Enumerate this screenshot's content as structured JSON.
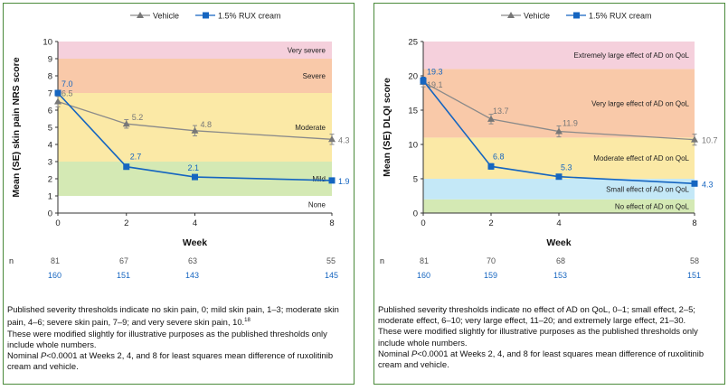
{
  "colors": {
    "vehicle": "#8a8a8a",
    "rux": "#1565c0",
    "band_green": "#d4e9b4",
    "band_yellow": "#fbe9a6",
    "band_orange": "#f9c9a9",
    "band_pink": "#f5d0dc",
    "band_blue": "#c4e8f7",
    "border": "#4a8a3a"
  },
  "chart_data": [
    {
      "type": "line",
      "legend": [
        "Vehicle",
        "1.5% RUX cream"
      ],
      "ylabel": "Mean (SE) skin pain NRS score",
      "xlabel": "Week",
      "ylim": [
        0,
        10
      ],
      "yticks": [
        "0",
        "1",
        "2",
        "3",
        "4",
        "5",
        "6",
        "7",
        "8",
        "9",
        "10"
      ],
      "x": [
        0,
        2,
        4,
        8
      ],
      "xticks": [
        "0",
        "2",
        "4",
        "8"
      ],
      "series": [
        {
          "name": "Vehicle",
          "values": [
            6.5,
            5.2,
            4.8,
            4.3
          ],
          "labels": [
            "6.5",
            "5.2",
            "4.8",
            "4.3"
          ],
          "se": [
            0.3,
            0.25,
            0.3,
            0.3
          ]
        },
        {
          "name": "1.5% RUX cream",
          "values": [
            7.0,
            2.7,
            2.1,
            1.9
          ],
          "labels": [
            "7.0",
            "2.7",
            "2.1",
            "1.9"
          ],
          "se": [
            0.15,
            0.15,
            0.12,
            0.12
          ]
        }
      ],
      "bands": [
        {
          "label": "None",
          "from": 0,
          "to": 1,
          "color": "#ffffff"
        },
        {
          "label": "Mild",
          "from": 1,
          "to": 3,
          "color": "#d4e9b4"
        },
        {
          "label": "Moderate",
          "from": 3,
          "to": 7,
          "color": "#fbe9a6"
        },
        {
          "label": "Severe",
          "from": 7,
          "to": 9,
          "color": "#f9c9a9"
        },
        {
          "label": "Very severe",
          "from": 9,
          "to": 10,
          "color": "#f5d0dc"
        }
      ],
      "n_label": "n",
      "n_vehicle": [
        "81",
        "67",
        "63",
        "55"
      ],
      "n_rux": [
        "160",
        "151",
        "143",
        "145"
      ]
    },
    {
      "type": "line",
      "legend": [
        "Vehicle",
        "1.5% RUX cream"
      ],
      "ylabel": "Mean (SE) DLQI score",
      "xlabel": "Week",
      "ylim": [
        0,
        25
      ],
      "yticks": [
        "0",
        "5",
        "10",
        "15",
        "20",
        "25"
      ],
      "x": [
        0,
        2,
        4,
        8
      ],
      "xticks": [
        "0",
        "2",
        "4",
        "8"
      ],
      "series": [
        {
          "name": "Vehicle",
          "values": [
            19.1,
            13.7,
            11.9,
            10.7
          ],
          "labels": [
            "19.1",
            "13.7",
            "11.9",
            "10.7"
          ],
          "se": [
            0.7,
            0.7,
            0.8,
            0.8
          ]
        },
        {
          "name": "1.5% RUX cream",
          "values": [
            19.3,
            6.8,
            5.3,
            4.3
          ],
          "labels": [
            "19.3",
            "6.8",
            "5.3",
            "4.3"
          ],
          "se": [
            0.5,
            0.4,
            0.35,
            0.3
          ]
        }
      ],
      "bands": [
        {
          "label": "No effect of AD on QoL",
          "from": 0,
          "to": 2,
          "color": "#d4e9b4"
        },
        {
          "label": "Small effect of AD on QoL",
          "from": 2,
          "to": 5,
          "color": "#c4e8f7"
        },
        {
          "label": "Moderate effect of AD on QoL",
          "from": 5,
          "to": 11,
          "color": "#fbe9a6"
        },
        {
          "label": "Very large effect of AD on QoL",
          "from": 11,
          "to": 21,
          "color": "#f9c9a9"
        },
        {
          "label": "Extremely large effect of AD on QoL",
          "from": 21,
          "to": 25,
          "color": "#f5d0dc"
        }
      ],
      "n_label": "n",
      "n_vehicle": [
        "81",
        "70",
        "68",
        "58"
      ],
      "n_rux": [
        "160",
        "159",
        "153",
        "151"
      ]
    }
  ],
  "footnotes": {
    "left": {
      "p1": "Published severity thresholds indicate no skin pain, 0; mild skin pain, 1–3; moderate skin pain, 4–6; severe skin pain, 7–9; and very severe skin pain, 10.",
      "p1_sup": "18",
      "p2": "These were modified slightly for illustrative purposes as the published thresholds only include whole numbers.",
      "p3_a": "Nominal ",
      "p3_italic": "P",
      "p3_b": "<0.0001 at Weeks 2, 4, and 8 for least squares mean difference of ruxolitinib cream and vehicle."
    },
    "right": {
      "p1": "Published severity thresholds indicate no effect of AD on QoL, 0–1; small effect, 2–5; moderate effect, 6–10; very large effect, 11–20; and extremely large effect, 21–30.",
      "p2": "These were modified slightly for illustrative purposes as the published thresholds only include whole numbers.",
      "p3_a": "Nominal ",
      "p3_italic": "P",
      "p3_b": "<0.0001 at Weeks 2, 4, and 8 for least squares mean difference of ruxolitinib cream and vehicle."
    }
  }
}
